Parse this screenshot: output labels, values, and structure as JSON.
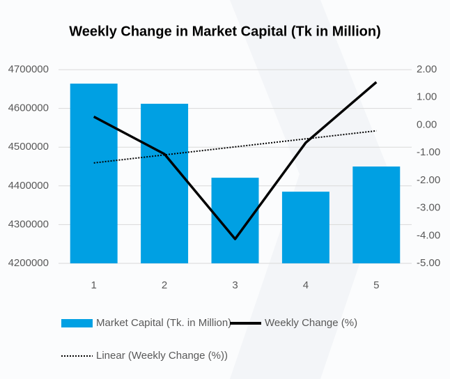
{
  "chart_data": {
    "type": "bar",
    "title": "Weekly Change in Market Capital (Tk in Million)",
    "categories": [
      "1",
      "2",
      "3",
      "4",
      "5"
    ],
    "series": [
      {
        "name": "Market Capital (Tk. in Million)",
        "type": "bar",
        "color": "#00a0e3",
        "values": [
          4664000,
          4612000,
          4421000,
          4385000,
          4450000
        ]
      },
      {
        "name": "Weekly Change (%)",
        "type": "line",
        "axis": "y2",
        "color": "#000000",
        "values": [
          0.3,
          -1.05,
          -4.12,
          -0.64,
          1.55
        ]
      },
      {
        "name": "Linear (Weekly Change (%))",
        "type": "line",
        "axis": "y2",
        "color": "#000000",
        "dash": "dotted",
        "values": [
          -1.37,
          -1.08,
          -0.79,
          -0.5,
          -0.21
        ]
      }
    ],
    "ylim": [
      4200000,
      4700000
    ],
    "yticks": [
      4200000,
      4300000,
      4400000,
      4500000,
      4600000,
      4700000
    ],
    "y2lim": [
      -5,
      2
    ],
    "y2ticks": [
      {
        "value": -5,
        "label": "-5.00"
      },
      {
        "value": -4,
        "label": "-4.00"
      },
      {
        "value": -3,
        "label": "-3.00"
      },
      {
        "value": -2,
        "label": "-2.00"
      },
      {
        "value": -1,
        "label": "-1.00"
      },
      {
        "value": 0,
        "label": "0.00"
      },
      {
        "value": 1,
        "label": "1.00"
      },
      {
        "value": 2,
        "label": "2.00"
      }
    ],
    "grid": true,
    "legend": "bottom"
  }
}
